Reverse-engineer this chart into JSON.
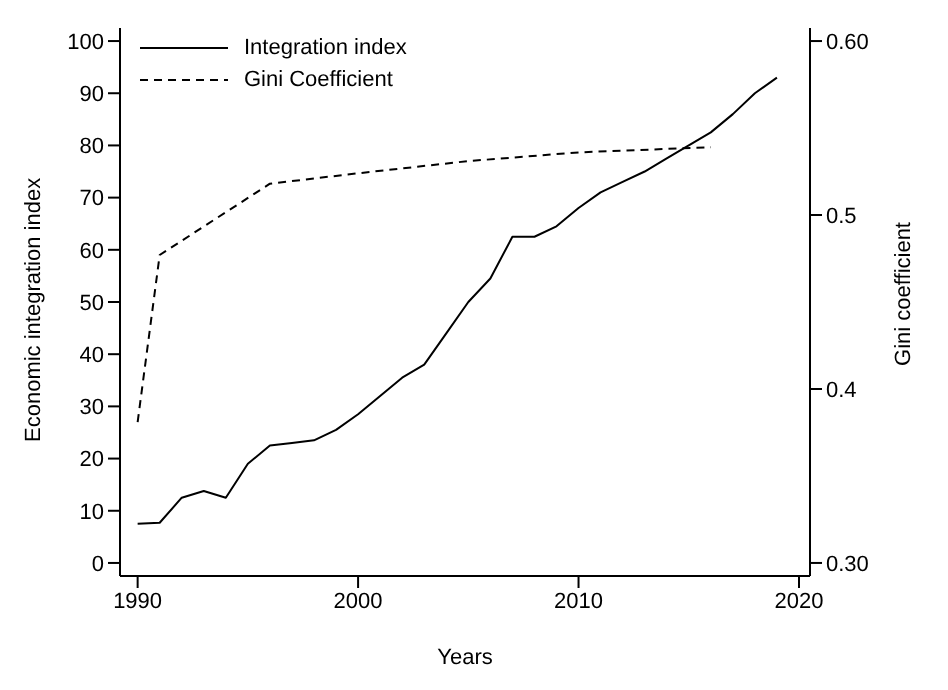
{
  "chart_data": {
    "type": "line",
    "xlabel": "Years",
    "ylabel": "Economic integration index",
    "y2label": "Gini coefficient",
    "xlim": [
      1989.2,
      2020.5
    ],
    "xticks": [
      1990,
      2000,
      2010,
      2020
    ],
    "ylim": [
      -2.5,
      102.5
    ],
    "yticks": [
      0,
      10,
      20,
      30,
      40,
      50,
      60,
      70,
      80,
      90,
      100
    ],
    "y2lim": [
      0.2925,
      0.6075
    ],
    "y2ticks": [
      {
        "value": 0.3,
        "label": "0.30"
      },
      {
        "value": 0.4,
        "label": "0.4"
      },
      {
        "value": 0.5,
        "label": "0.5"
      },
      {
        "value": 0.6,
        "label": "0.60"
      }
    ],
    "grid": false,
    "legend": "top left",
    "marker": "none",
    "series": [
      {
        "name": "Integration index",
        "color": "#000000",
        "line_style": "solid",
        "x": [
          1990,
          1991,
          1992,
          1993,
          1994,
          1995,
          1996,
          1997,
          1998,
          1999,
          2000,
          2001,
          2002,
          2003,
          2004,
          2005,
          2006,
          2007,
          2008,
          2009,
          2010,
          2011,
          2012,
          2013,
          2014,
          2015,
          2016,
          2017,
          2018,
          2019
        ],
        "values": [
          7.5,
          7.7,
          12.5,
          13.8,
          12.5,
          19,
          22.5,
          23,
          23.5,
          25.5,
          28.5,
          32,
          35.5,
          38,
          44,
          50,
          54.5,
          62.5,
          62.5,
          64.5,
          68,
          71,
          73,
          75,
          77.5,
          80,
          82.5,
          86,
          90,
          93
        ]
      },
      {
        "name": "Gini Coefficient",
        "color": "#000000",
        "line_style": "dashed",
        "axis": "y2",
        "x": [
          1990,
          1991,
          1996,
          2000,
          2005,
          2010,
          2016
        ],
        "values": [
          0.381,
          0.477,
          0.518,
          0.524,
          0.531,
          0.536,
          0.539
        ]
      }
    ]
  }
}
